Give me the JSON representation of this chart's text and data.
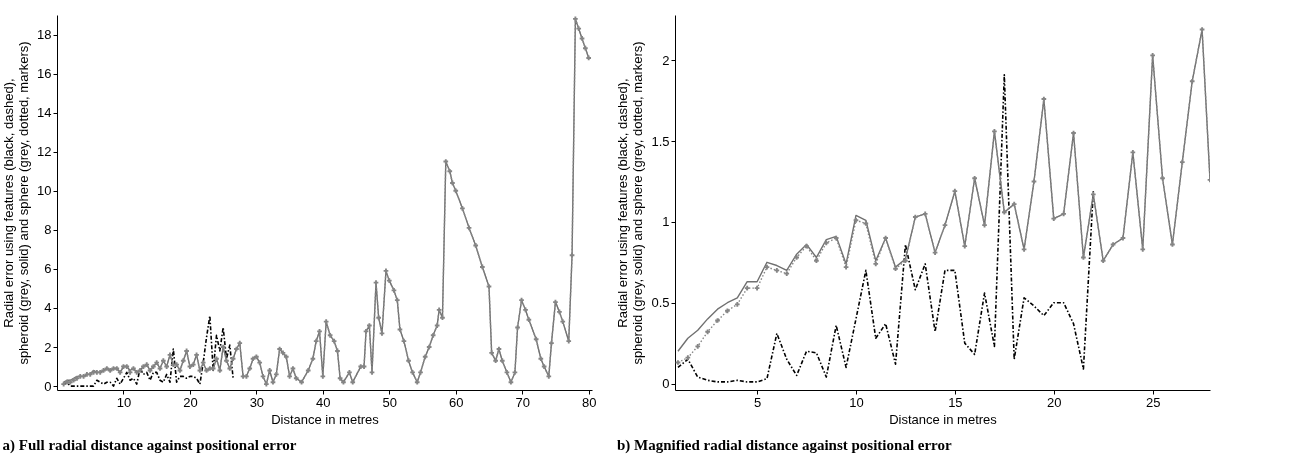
{
  "chart_data": [
    {
      "type": "line",
      "title": "a) Full radial distance against positional error",
      "xlabel": "Distance in metres",
      "ylabel": "Radial error using features (black, dashed),\nspheroid (grey, solid) and sphere (grey, dotted, markers)",
      "xlim": [
        0,
        80.5
      ],
      "ylim": [
        -0.2,
        19
      ],
      "xticks": [
        10,
        20,
        30,
        40,
        50,
        60,
        70,
        80
      ],
      "yticks": [
        0,
        2,
        4,
        6,
        8,
        10,
        12,
        14,
        16,
        18
      ],
      "x": [
        1,
        1.5,
        2,
        2.5,
        3,
        3.5,
        4,
        4.5,
        5,
        5.5,
        6,
        6.5,
        7,
        7.5,
        8,
        8.5,
        9,
        9.5,
        10,
        10.5,
        11,
        11.5,
        12,
        12.5,
        13,
        13.5,
        14,
        14.5,
        15,
        15.5,
        16,
        16.5,
        17,
        17.5,
        18,
        18.5,
        19,
        19.5,
        20,
        20.5,
        21,
        21.5,
        22,
        22.5,
        23,
        23.5,
        24,
        24.5,
        25,
        25.5,
        26,
        26.5,
        27,
        27.5,
        28,
        28.5,
        29,
        29.5,
        30,
        30.5,
        31,
        31.5,
        32,
        32.5,
        33,
        33.5,
        34,
        34.5,
        35,
        35.5,
        36,
        36.8,
        37.8,
        38.5,
        39,
        39.5,
        40,
        40.5,
        41.1,
        41.7,
        42.2,
        42.6,
        43.1,
        44,
        44.5,
        45.7,
        46.2,
        46.5,
        47,
        47.4,
        48,
        48.4,
        48.9,
        49.5,
        50,
        50.7,
        51.2,
        51.6,
        52.2,
        52.9,
        53.5,
        54.2,
        54.7,
        55.4,
        56,
        56.6,
        57.2,
        57.5,
        58,
        58.5,
        59.1,
        59.5,
        60,
        61,
        62,
        63,
        64,
        65,
        65.4,
        66,
        66.5,
        67,
        67.7,
        68.3,
        68.9,
        69.3,
        69.9,
        70.5,
        71,
        72.1,
        72.8,
        73.3,
        74,
        74.4,
        75,
        75.6,
        76.1,
        77,
        77.5,
        78,
        78.5,
        79,
        79.5,
        80
      ],
      "series": [
        {
          "color": "#000000",
          "line_style": "dashed",
          "x": [
            1,
            1.5,
            2,
            2.5,
            3,
            3.5,
            4,
            4.5,
            5,
            5.5,
            6,
            6.5,
            7,
            7.5,
            8,
            8.5,
            9,
            9.5,
            10,
            10.5,
            11,
            11.5,
            12,
            12.5,
            13,
            13.5,
            14,
            14.5,
            15,
            15.5,
            16,
            16.5,
            17,
            17.5,
            18,
            18.5,
            19,
            19.5,
            20,
            20.5,
            21,
            21.5,
            22,
            22.5,
            23,
            23.5,
            24,
            24.5,
            25,
            25.5,
            26,
            26.5
          ],
          "values": [
            0.1,
            0.2,
            0.0,
            0.0,
            0.0,
            0.0,
            0.0,
            0.0,
            0.0,
            0.0,
            0.3,
            0.2,
            0.1,
            0.2,
            0.2,
            0.0,
            0.4,
            0.1,
            0.4,
            0.7,
            0.3,
            0.4,
            0.1,
            0.9,
            0.6,
            0.7,
            0.3,
            0.7,
            0.7,
            0.3,
            0.2,
            0.6,
            0.2,
            1.9,
            0.2,
            0.5,
            0.5,
            0.4,
            0.5,
            0.5,
            0.4,
            0.1,
            1.2,
            2.5,
            3.6,
            0.8,
            2.6,
            1.8,
            3.0,
            1.4,
            2.1,
            0.4
          ]
        },
        {
          "color": "#707070",
          "line_style": "solid",
          "values": [
            0.2,
            0.3,
            0.3,
            0.4,
            0.5,
            0.5,
            0.5,
            0.6,
            0.6,
            0.8,
            0.7,
            0.7,
            0.8,
            0.9,
            0.8,
            0.9,
            0.9,
            0.7,
            1.0,
            1.0,
            0.8,
            0.9,
            0.7,
            0.8,
            1.0,
            1.1,
            0.8,
            1.0,
            1.2,
            0.9,
            1.3,
            1.0,
            1.6,
            1.1,
            1.1,
            0.8,
            1.3,
            1.8,
            1.0,
            1.1,
            1.6,
            0.8,
            1.2,
            0.8,
            0.9,
            0.9,
            1.4,
            0.8,
            2.0,
            1.3,
            0.9,
            1.4,
            1.9,
            2.2,
            0.5,
            0.5,
            0.9,
            1.4,
            1.5,
            1.2,
            0.5,
            0.1,
            0.8,
            0.2,
            0.6,
            1.9,
            1.7,
            1.5,
            0.5,
            0.9,
            0.4,
            0.2,
            0.8,
            1.4,
            2.3,
            2.8,
            0.5,
            3.3,
            2.6,
            2.3,
            1.8,
            0.4,
            0.2,
            0.7,
            0.2,
            1.0,
            1.0,
            2.8,
            3.1,
            0.7,
            5.3,
            3.5,
            2.7,
            5.9,
            5.4,
            4.9,
            4.4,
            2.9,
            2.3,
            1.3,
            0.7,
            0.2,
            0.7,
            1.5,
            2.0,
            2.6,
            3.1,
            3.9,
            3.5,
            11.5,
            11.0,
            10.4,
            10.0,
            9.1,
            8.1,
            7.2,
            6.1,
            5.1,
            1.7,
            1.3,
            1.9,
            1.3,
            0.7,
            0.2,
            0.7,
            3.0,
            4.4,
            3.9,
            3.4,
            2.4,
            1.4,
            1.0,
            0.5,
            2.2,
            4.3,
            3.8,
            3.3,
            2.3,
            6.7,
            18.8,
            18.3,
            17.8,
            17.3,
            16.8
          ]
        },
        {
          "color": "#858585",
          "line_style": "dotted",
          "marker": "cross",
          "values": [
            0.1,
            0.2,
            0.2,
            0.3,
            0.4,
            0.5,
            0.5,
            0.6,
            0.6,
            0.7,
            0.7,
            0.7,
            0.8,
            0.9,
            0.8,
            0.9,
            0.9,
            0.7,
            1.0,
            1.0,
            0.7,
            0.9,
            0.7,
            0.8,
            1.0,
            1.1,
            0.8,
            1.0,
            1.2,
            0.9,
            1.3,
            1.0,
            1.6,
            1.1,
            1.1,
            0.8,
            1.3,
            1.8,
            1.0,
            1.1,
            1.6,
            0.8,
            1.2,
            0.8,
            0.9,
            0.9,
            1.4,
            0.8,
            2.0,
            1.3,
            0.9,
            1.4,
            1.9,
            2.2,
            0.5,
            0.5,
            0.9,
            1.4,
            1.5,
            1.2,
            0.5,
            0.1,
            0.8,
            0.2,
            0.6,
            1.9,
            1.7,
            1.5,
            0.5,
            0.9,
            0.4,
            0.2,
            0.8,
            1.4,
            2.3,
            2.8,
            0.5,
            3.3,
            2.6,
            2.3,
            1.8,
            0.4,
            0.2,
            0.7,
            0.2,
            1.0,
            1.0,
            2.8,
            3.1,
            0.7,
            5.3,
            3.5,
            2.7,
            5.9,
            5.4,
            4.9,
            4.4,
            2.9,
            2.3,
            1.3,
            0.7,
            0.2,
            0.7,
            1.5,
            2.0,
            2.6,
            3.1,
            3.9,
            3.5,
            11.5,
            11.0,
            10.4,
            10.0,
            9.1,
            8.1,
            7.2,
            6.1,
            5.1,
            1.7,
            1.3,
            1.9,
            1.3,
            0.7,
            0.2,
            0.7,
            3.0,
            4.4,
            3.9,
            3.4,
            2.4,
            1.4,
            1.0,
            0.5,
            2.2,
            4.3,
            3.8,
            3.3,
            2.3,
            6.7,
            18.8,
            18.3,
            17.8,
            17.3,
            16.8
          ]
        }
      ]
    },
    {
      "type": "line",
      "title": "b) Magnified radial distance against positional error",
      "xlabel": "Distance in metres",
      "ylabel": "Radial error using features (black, dashed),\nspheroid (grey, solid) and sphere (grey, dotted, markers)",
      "xlim": [
        0.85,
        27.9
      ],
      "ylim": [
        -0.04,
        2.28
      ],
      "xticks": [
        5,
        10,
        15,
        20,
        25
      ],
      "yticks": [
        0,
        0.5,
        1,
        1.5,
        2
      ],
      "x": [
        1,
        1.5,
        2,
        2.5,
        3,
        3.5,
        4,
        4.5,
        5,
        5.5,
        6,
        6.5,
        7,
        7.5,
        8,
        8.5,
        9,
        9.5,
        10,
        10.5,
        11,
        11.5,
        12,
        12.5,
        13,
        13.5,
        14,
        14.5,
        15,
        15.5,
        16,
        16.5,
        17,
        17.5,
        18,
        18.5,
        19,
        19.5,
        20,
        20.5,
        21,
        21.5,
        22,
        22.5,
        23,
        23.5,
        24,
        24.5,
        25,
        25.5,
        26,
        26.5,
        27,
        27.5,
        27.9
      ],
      "series": [
        {
          "color": "#000000",
          "line_style": "dashed",
          "values": [
            0.1,
            0.15,
            0.04,
            0.02,
            0.01,
            0.01,
            0.02,
            0.01,
            0.01,
            0.03,
            0.31,
            0.15,
            0.05,
            0.2,
            0.19,
            0.04,
            0.36,
            0.1,
            0.4,
            0.7,
            0.28,
            0.37,
            0.12,
            0.86,
            0.58,
            0.74,
            0.32,
            0.7,
            0.7,
            0.25,
            0.18,
            0.56,
            0.23,
            1.91,
            0.15,
            0.53,
            0.48,
            0.42,
            0.5,
            0.5,
            0.37,
            0.09,
            1.19,
            null,
            null,
            null,
            null,
            null,
            null,
            null,
            null,
            null,
            null,
            null,
            null
          ]
        },
        {
          "color": "#707070",
          "line_style": "solid",
          "values": [
            0.2,
            0.28,
            0.33,
            0.4,
            0.46,
            0.5,
            0.53,
            0.63,
            0.63,
            0.75,
            0.73,
            0.7,
            0.8,
            0.86,
            0.78,
            0.89,
            0.91,
            0.74,
            1.04,
            1.01,
            0.76,
            0.9,
            0.72,
            0.77,
            1.03,
            1.05,
            0.81,
            0.98,
            1.19,
            0.85,
            1.27,
            0.98,
            1.56,
            1.06,
            1.11,
            0.83,
            1.25,
            1.76,
            1.02,
            1.05,
            1.55,
            0.78,
            1.17,
            0.76,
            0.86,
            0.9,
            1.43,
            0.83,
            2.03,
            1.27,
            0.86,
            1.37,
            1.87,
            2.19,
            1.26
          ]
        },
        {
          "color": "#858585",
          "line_style": "dotted",
          "marker": "cross",
          "values": [
            0.13,
            0.16,
            0.23,
            0.32,
            0.39,
            0.45,
            0.49,
            0.59,
            0.59,
            0.72,
            0.7,
            0.68,
            0.78,
            0.85,
            0.76,
            0.87,
            0.9,
            0.72,
            1.01,
            0.99,
            0.74,
            0.9,
            0.71,
            0.76,
            1.03,
            1.05,
            0.81,
            0.98,
            1.19,
            0.85,
            1.27,
            0.98,
            1.56,
            1.06,
            1.11,
            0.83,
            1.25,
            1.76,
            1.02,
            1.05,
            1.55,
            0.78,
            1.17,
            0.76,
            0.86,
            0.9,
            1.43,
            0.83,
            2.03,
            1.27,
            0.86,
            1.37,
            1.87,
            2.19,
            1.26
          ]
        }
      ]
    }
  ]
}
